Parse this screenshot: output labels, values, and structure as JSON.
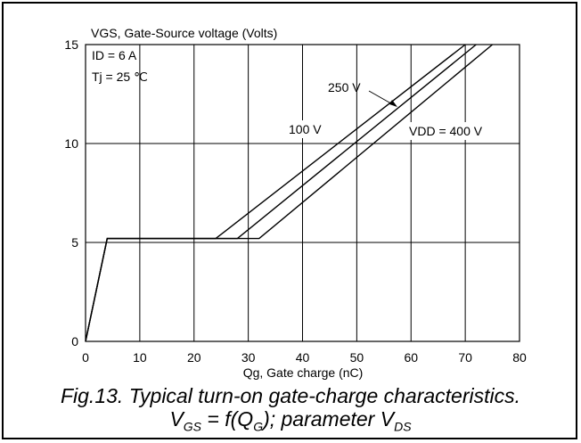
{
  "chart_data": {
    "type": "line",
    "title": "VGS, Gate-Source voltage (Volts)",
    "xlabel": "Qg, Gate charge (nC)",
    "ylabel": "VGS, Gate-Source voltage (Volts)",
    "xlim": [
      0,
      80
    ],
    "ylim": [
      0,
      15
    ],
    "xticks": [
      0,
      10,
      20,
      30,
      40,
      50,
      60,
      70,
      80
    ],
    "yticks": [
      0,
      5,
      10,
      15
    ],
    "grid": true,
    "conditions": [
      "ID = 6 A",
      "Tj = 25 ℃"
    ],
    "series": [
      {
        "name": "100 V",
        "x": [
          0,
          4,
          24,
          70
        ],
        "y": [
          0,
          5.2,
          5.2,
          15
        ]
      },
      {
        "name": "250 V",
        "x": [
          0,
          4,
          28,
          72
        ],
        "y": [
          0,
          5.2,
          5.2,
          15
        ]
      },
      {
        "name": "VDD = 400 V",
        "x": [
          0,
          4,
          32,
          75
        ],
        "y": [
          0,
          5.2,
          5.2,
          15
        ]
      }
    ]
  },
  "caption": {
    "line1": "Fig.13.  Typical turn-on gate-charge characteristics.",
    "line2_parts": {
      "v": "V",
      "gs": "GS",
      "eq": " = f(Q",
      "g": "G",
      "param": "); parameter V",
      "ds": "DS"
    }
  }
}
